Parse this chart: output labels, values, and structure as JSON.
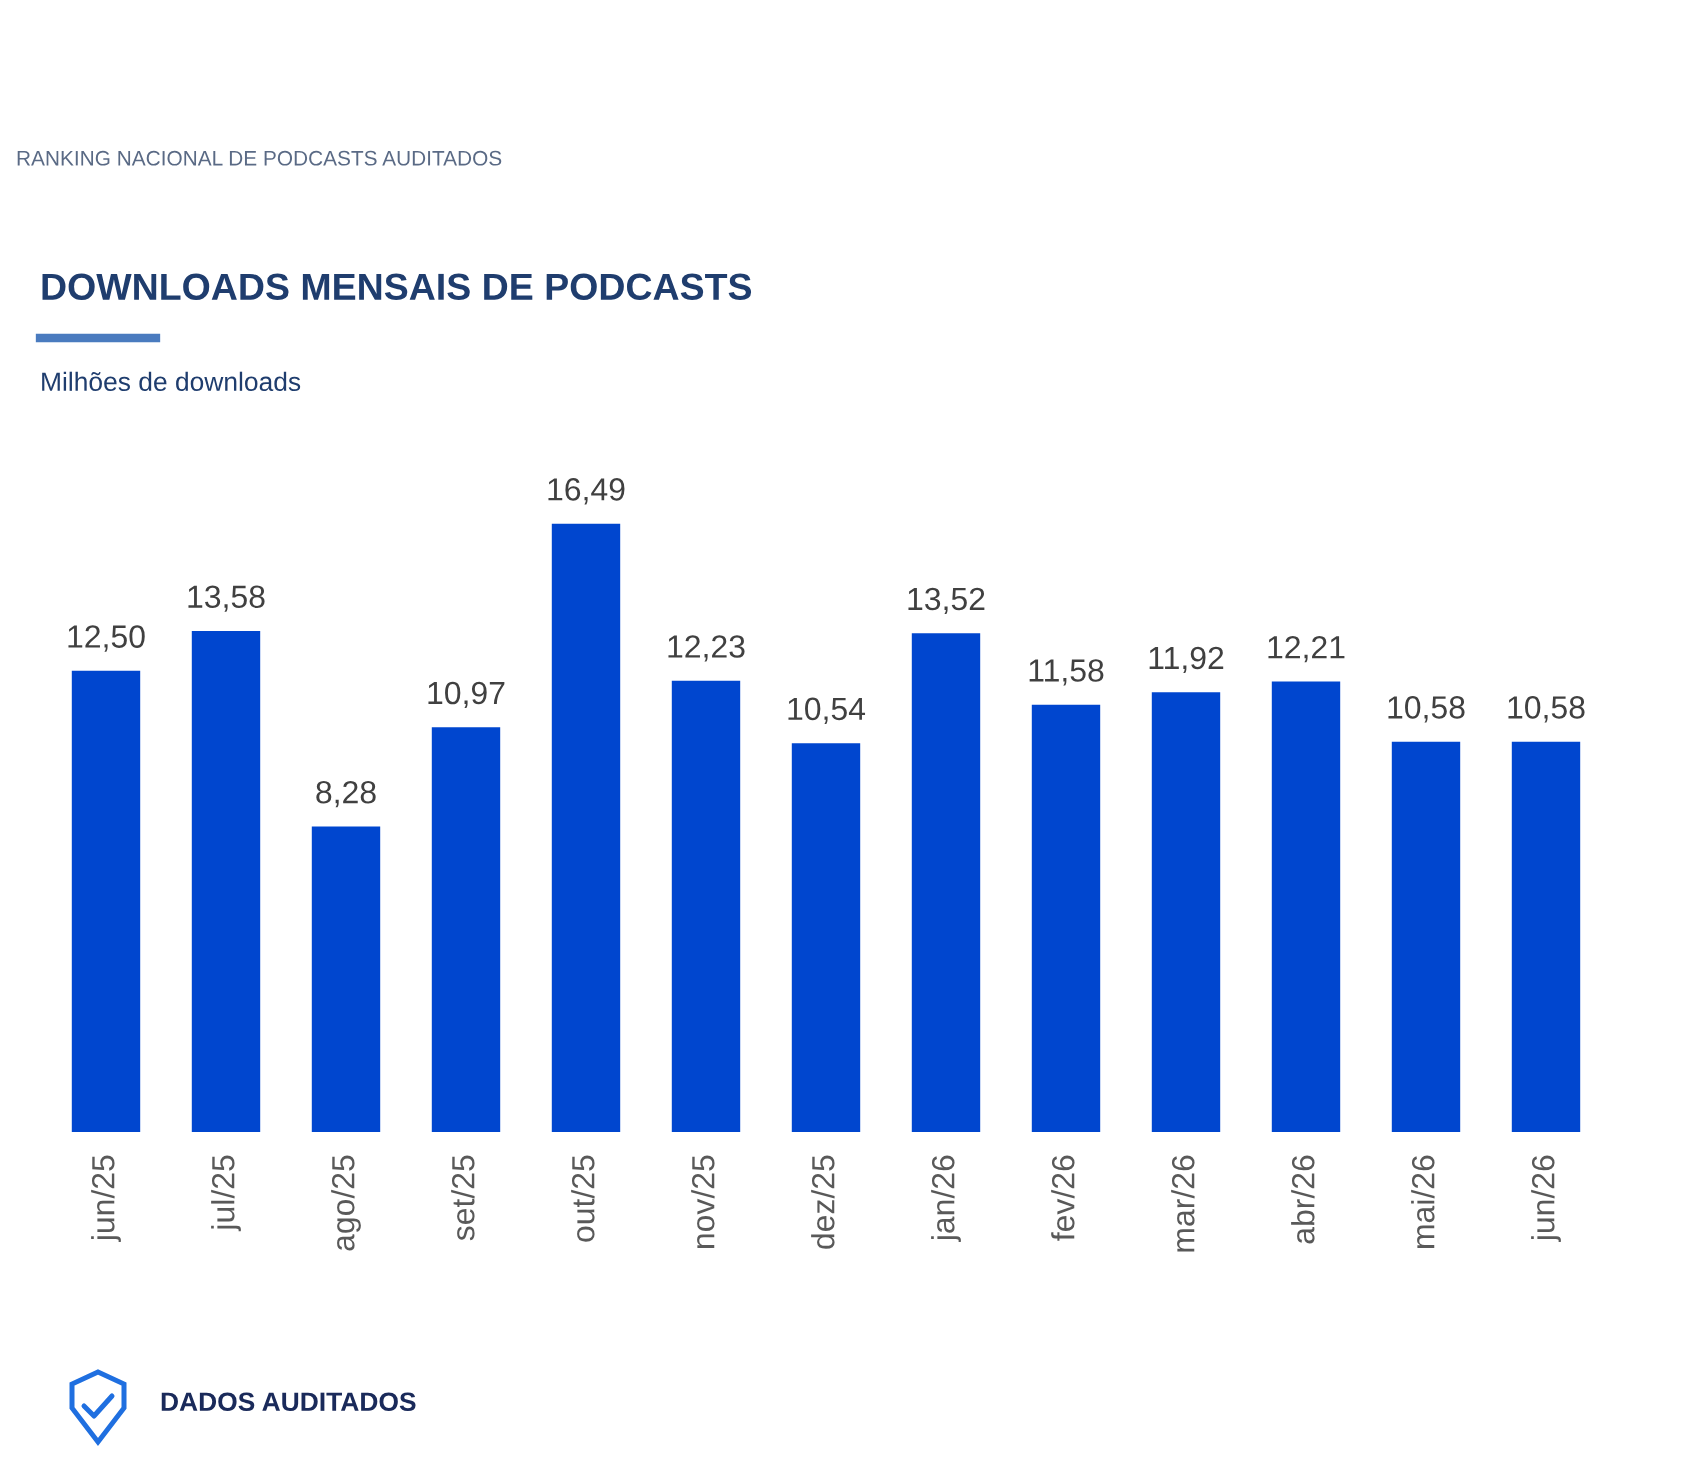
{
  "chart_data": {
    "type": "bar",
    "title": "DOWNLOADS MENSAIS DE PODCASTS",
    "subtitle": "Milhões de downloads",
    "categories": [
      "jun/25",
      "jul/25",
      "ago/25",
      "set/25",
      "out/25",
      "nov/25",
      "dez/25",
      "jan/26",
      "fev/26",
      "mar/26",
      "abr/26",
      "mai/26",
      "jun/26"
    ],
    "values": [
      12.5,
      13.58,
      8.28,
      10.97,
      16.49,
      12.23,
      10.54,
      13.52,
      11.58,
      11.92,
      12.21,
      10.58,
      10.58
    ],
    "value_labels": [
      "12,50",
      "13,58",
      "8,28",
      "10,97",
      "16,49",
      "12,23",
      "10,54",
      "13,52",
      "11,58",
      "11,92",
      "12,21",
      "10,58",
      "10,58"
    ],
    "color": "#0046cf",
    "tick_labels": "x",
    "annotations": [
      "RANKING NACIONAL DE PODCASTS AUDITADOS",
      "DADOS AUDITADOS"
    ]
  }
}
